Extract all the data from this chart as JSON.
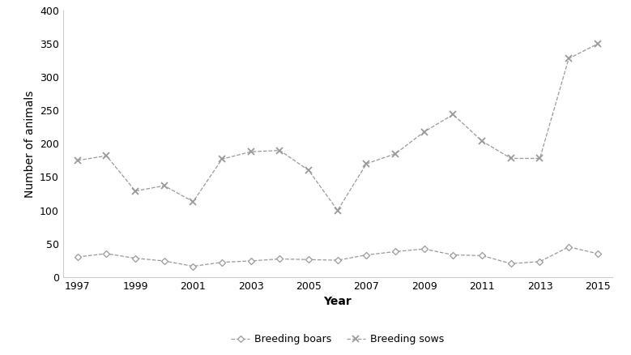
{
  "years": [
    1997,
    1998,
    1999,
    2000,
    2001,
    2002,
    2003,
    2004,
    2005,
    2006,
    2007,
    2008,
    2009,
    2010,
    2011,
    2012,
    2013,
    2014,
    2015
  ],
  "boars": [
    30,
    35,
    28,
    24,
    16,
    22,
    24,
    27,
    26,
    25,
    33,
    38,
    42,
    33,
    32,
    20,
    23,
    45,
    35
  ],
  "sows": [
    175,
    182,
    129,
    137,
    113,
    177,
    188,
    190,
    160,
    100,
    170,
    185,
    218,
    244,
    204,
    178,
    178,
    328,
    350
  ],
  "boars_label": "Breeding boars",
  "sows_label": "Breeding sows",
  "xlabel": "Year",
  "ylabel": "Number of animals",
  "xlim": [
    1996.5,
    2015.5
  ],
  "ylim": [
    0,
    400
  ],
  "yticks": [
    0,
    50,
    100,
    150,
    200,
    250,
    300,
    350,
    400
  ],
  "xticks": [
    1997,
    1999,
    2001,
    2003,
    2005,
    2007,
    2009,
    2011,
    2013,
    2015
  ],
  "line_color": "#999999",
  "spine_color": "#cccccc",
  "background_color": "#ffffff",
  "xlabel_fontsize": 10,
  "ylabel_fontsize": 10,
  "tick_fontsize": 9,
  "legend_fontsize": 9
}
